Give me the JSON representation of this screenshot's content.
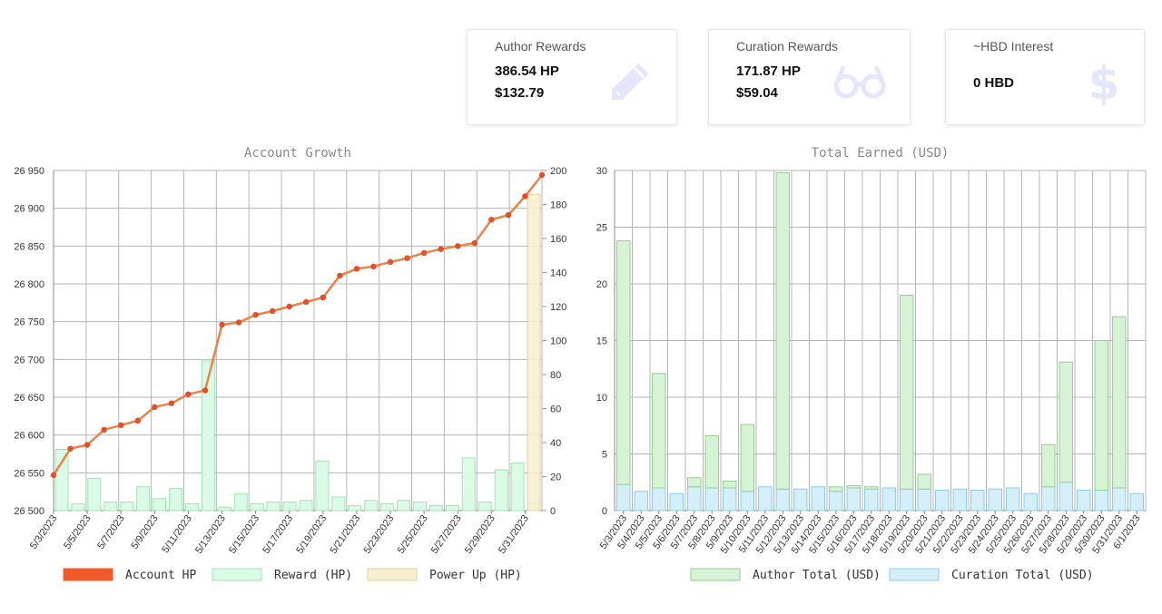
{
  "cards": [
    {
      "title": "Author Rewards",
      "line1": "386.54 HP",
      "line2": "$132.79",
      "icon": "pencil-icon"
    },
    {
      "title": "Curation Rewards",
      "line1": "171.87 HP",
      "line2": "$59.04",
      "icon": "glasses-icon"
    },
    {
      "title": "~HBD Interest",
      "line1": "0 HBD",
      "line2": "",
      "icon": "dollar-icon"
    }
  ],
  "colors": {
    "account_hp_line": "#e8834a",
    "account_hp_point": "#e0502a",
    "account_hp_legend": "#f05a28",
    "reward_fill": "#dcfbe7",
    "reward_stroke": "#9fe3b4",
    "powerup_fill": "#f7efcf",
    "powerup_stroke": "#e2d29a",
    "author_fill": "#d6f3d6",
    "author_stroke": "#93cf93",
    "curation_fill": "#d5effa",
    "curation_stroke": "#8fcbe6",
    "grid": "#b4b4b4",
    "title": "#888888",
    "icon": "#e4e6fb"
  },
  "chart_data": [
    {
      "type": "line",
      "title": "Account Growth",
      "x_tick_labels": [
        "5/3/2023",
        "5/5/2023",
        "5/7/2023",
        "5/9/2023",
        "5/11/2023",
        "5/13/2023",
        "5/15/2023",
        "5/17/2023",
        "5/19/2023",
        "5/21/2023",
        "5/23/2023",
        "5/25/2023",
        "5/27/2023",
        "5/29/2023",
        "5/31/2023"
      ],
      "y_left_ticks": [
        "26 500",
        "26 550",
        "26 600",
        "26 650",
        "26 700",
        "26 750",
        "26 800",
        "26 850",
        "26 900",
        "26 950"
      ],
      "y_left_lim": [
        26500,
        26950
      ],
      "y_right_ticks": [
        "0",
        "20",
        "40",
        "60",
        "80",
        "100",
        "120",
        "140",
        "160",
        "180",
        "200"
      ],
      "y_right_lim": [
        0,
        200
      ],
      "x": [
        "5/3/2023",
        "5/4/2023",
        "5/5/2023",
        "5/6/2023",
        "5/7/2023",
        "5/8/2023",
        "5/9/2023",
        "5/10/2023",
        "5/11/2023",
        "5/12/2023",
        "5/13/2023",
        "5/14/2023",
        "5/15/2023",
        "5/16/2023",
        "5/17/2023",
        "5/18/2023",
        "5/19/2023",
        "5/20/2023",
        "5/21/2023",
        "5/22/2023",
        "5/23/2023",
        "5/24/2023",
        "5/25/2023",
        "5/26/2023",
        "5/27/2023",
        "5/28/2023",
        "5/29/2023",
        "5/30/2023",
        "5/31/2023",
        "6/1/2023"
      ],
      "series": [
        {
          "name": "Account HP",
          "type": "line",
          "axis": "left",
          "values": [
            26547,
            26582,
            26587,
            26607,
            26613,
            26619,
            26637,
            26642,
            26654,
            26659,
            26746,
            26749,
            26759,
            26764,
            26770,
            26776,
            26782,
            26811,
            26820,
            26823,
            26829,
            26834,
            26841,
            26846,
            26850,
            26854,
            26885,
            26891,
            26916,
            26944
          ]
        },
        {
          "name": "Reward (HP)",
          "type": "bar",
          "axis": "right",
          "values": [
            36,
            4,
            19,
            5,
            5,
            14,
            7,
            13,
            4,
            88,
            2,
            10,
            4,
            5,
            5,
            6,
            29,
            8,
            3,
            6,
            4,
            6,
            5,
            3,
            3,
            31,
            5,
            24,
            28,
            4
          ]
        },
        {
          "name": "Power Up (HP)",
          "type": "bar",
          "axis": "right",
          "values": [
            0,
            0,
            0,
            0,
            0,
            0,
            0,
            0,
            0,
            0,
            0,
            0,
            0,
            0,
            0,
            0,
            0,
            0,
            0,
            0,
            0,
            0,
            0,
            0,
            0,
            0,
            0,
            0,
            0,
            186
          ]
        }
      ],
      "grid": true,
      "legend": "bottom"
    },
    {
      "type": "bar",
      "stacked": true,
      "title": "Total Earned (USD)",
      "categories": [
        "5/3/2023",
        "5/4/2023",
        "5/5/2023",
        "5/6/2023",
        "5/7/2023",
        "5/8/2023",
        "5/9/2023",
        "5/10/2023",
        "5/11/2023",
        "5/12/2023",
        "5/13/2023",
        "5/14/2023",
        "5/15/2023",
        "5/16/2023",
        "5/17/2023",
        "5/18/2023",
        "5/19/2023",
        "5/20/2023",
        "5/21/2023",
        "5/22/2023",
        "5/23/2023",
        "5/24/2023",
        "5/25/2023",
        "5/26/2023",
        "5/27/2023",
        "5/28/2023",
        "5/29/2023",
        "5/30/2023",
        "5/31/2023",
        "6/1/2023"
      ],
      "y_ticks": [
        "0",
        "5",
        "10",
        "15",
        "20",
        "25",
        "30"
      ],
      "ylim": [
        0,
        30
      ],
      "series": [
        {
          "name": "Curation Total (USD)",
          "values": [
            2.3,
            1.7,
            2.0,
            1.5,
            2.1,
            2.0,
            2.0,
            1.7,
            2.1,
            1.9,
            1.9,
            2.1,
            1.7,
            2.0,
            1.9,
            2.0,
            1.9,
            1.9,
            1.8,
            1.9,
            1.8,
            1.9,
            2.0,
            1.5,
            2.1,
            2.5,
            1.8,
            1.8,
            2.0,
            1.5
          ]
        },
        {
          "name": "Author Total (USD)",
          "values": [
            21.5,
            0,
            10.1,
            0,
            0.8,
            4.6,
            0.6,
            5.9,
            0,
            27.9,
            0,
            0,
            0.4,
            0.2,
            0.2,
            0,
            17.1,
            1.3,
            0,
            0,
            0,
            0,
            0,
            0,
            3.7,
            10.6,
            0,
            13.2,
            15.1,
            0
          ]
        }
      ],
      "grid": true,
      "legend": "bottom"
    }
  ]
}
